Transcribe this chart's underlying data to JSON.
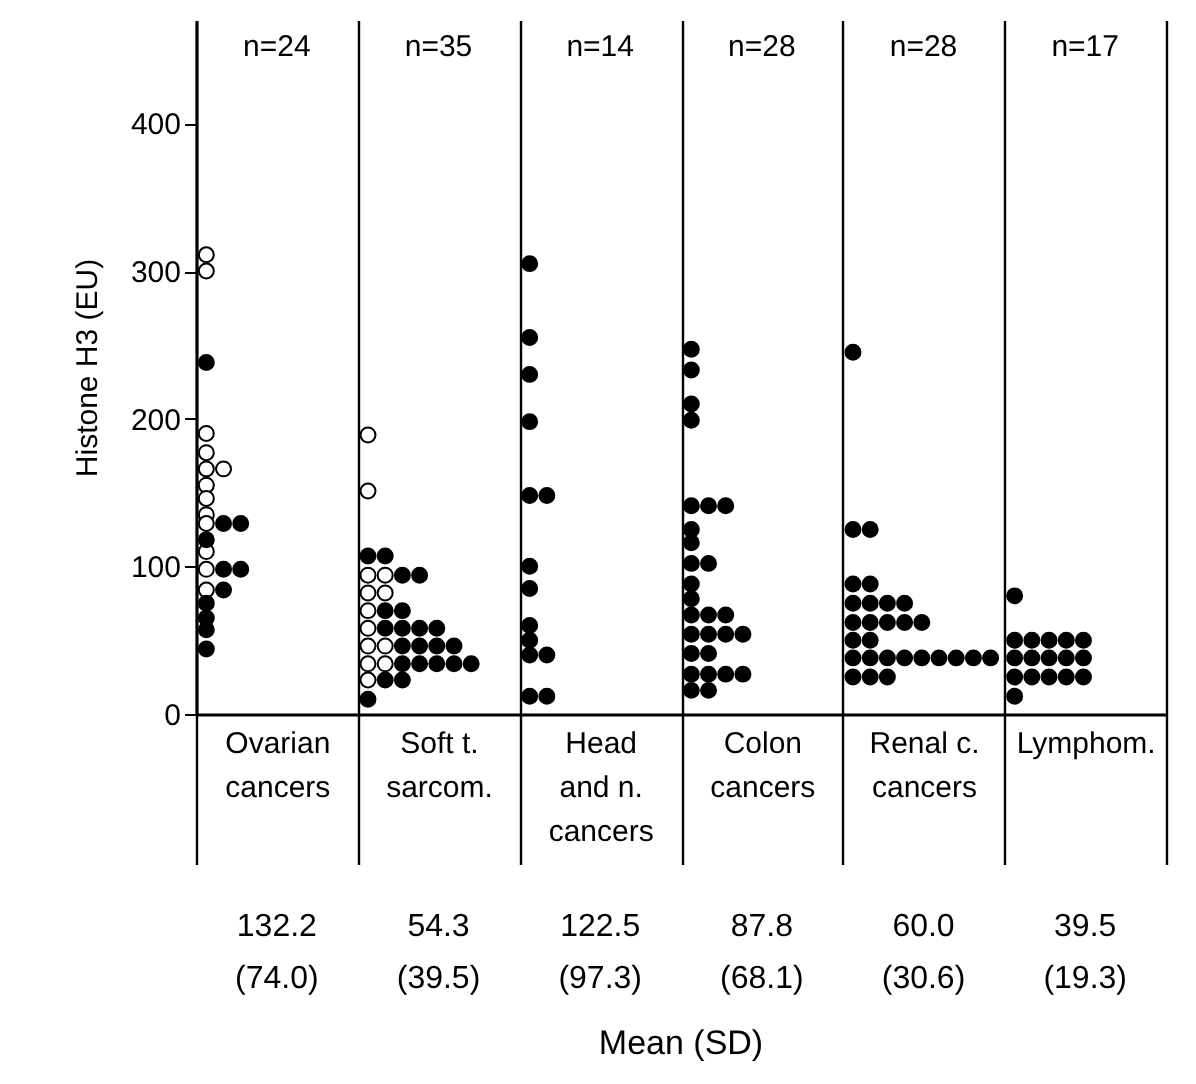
{
  "chart_data": {
    "type": "scatter",
    "ylabel": "Histone H3 (EU)",
    "categories": [
      "Ovarian\ncancers",
      "Soft t.\nsarcom.",
      "Head\nand n.\ncancers",
      "Colon\ncancers",
      "Renal c.\ncancers",
      "Lymphom."
    ],
    "ylim": [
      0,
      470
    ],
    "yticks": [
      0,
      100,
      200,
      300,
      400
    ],
    "grid": "x",
    "marker": "circle",
    "series": [
      {
        "color": "#ffffff",
        "x": [
          "Ovarian\ncancers",
          "Ovarian\ncancers",
          "Ovarian\ncancers",
          "Ovarian\ncancers",
          "Ovarian\ncancers",
          "Ovarian\ncancers",
          "Ovarian\ncancers",
          "Ovarian\ncancers",
          "Ovarian\ncancers",
          "Ovarian\ncancers",
          "Ovarian\ncancers",
          "Ovarian\ncancers",
          "Ovarian\ncancers",
          "Soft t.\nsarcom.",
          "Soft t.\nsarcom.",
          "Soft t.\nsarcom.",
          "Soft t.\nsarcom.",
          "Soft t.\nsarcom.",
          "Soft t.\nsarcom.",
          "Soft t.\nsarcom.",
          "Soft t.\nsarcom.",
          "Soft t.\nsarcom.",
          "Soft t.\nsarcom.",
          "Soft t.\nsarcom.",
          "Soft t.\nsarcom.",
          "Soft t.\nsarcom."
        ],
        "values": [
          311,
          300,
          190,
          177,
          166,
          166,
          155,
          146,
          135,
          129,
          110,
          98,
          84,
          189,
          151,
          94,
          94,
          82,
          82,
          70,
          58,
          46,
          46,
          34,
          34,
          23
        ]
      },
      {
        "color": "#000000",
        "x": [
          "Ovarian\ncancers",
          "Ovarian\ncancers",
          "Ovarian\ncancers",
          "Ovarian\ncancers",
          "Ovarian\ncancers",
          "Ovarian\ncancers",
          "Ovarian\ncancers",
          "Ovarian\ncancers",
          "Ovarian\ncancers",
          "Ovarian\ncancers",
          "Ovarian\ncancers",
          "Soft t.\nsarcom.",
          "Soft t.\nsarcom.",
          "Soft t.\nsarcom.",
          "Soft t.\nsarcom.",
          "Soft t.\nsarcom.",
          "Soft t.\nsarcom.",
          "Soft t.\nsarcom.",
          "Soft t.\nsarcom.",
          "Soft t.\nsarcom.",
          "Soft t.\nsarcom.",
          "Soft t.\nsarcom.",
          "Soft t.\nsarcom.",
          "Soft t.\nsarcom.",
          "Soft t.\nsarcom.",
          "Soft t.\nsarcom.",
          "Soft t.\nsarcom.",
          "Soft t.\nsarcom.",
          "Soft t.\nsarcom.",
          "Soft t.\nsarcom.",
          "Soft t.\nsarcom.",
          "Soft t.\nsarcom.",
          "Soft t.\nsarcom.",
          "Head\nand n.\ncancers",
          "Head\nand n.\ncancers",
          "Head\nand n.\ncancers",
          "Head\nand n.\ncancers",
          "Head\nand n.\ncancers",
          "Head\nand n.\ncancers",
          "Head\nand n.\ncancers",
          "Head\nand n.\ncancers",
          "Head\nand n.\ncancers",
          "Head\nand n.\ncancers",
          "Head\nand n.\ncancers",
          "Head\nand n.\ncancers",
          "Head\nand n.\ncancers",
          "Head\nand n.\ncancers",
          "Colon\ncancers",
          "Colon\ncancers",
          "Colon\ncancers",
          "Colon\ncancers",
          "Colon\ncancers",
          "Colon\ncancers",
          "Colon\ncancers",
          "Colon\ncancers",
          "Colon\ncancers",
          "Colon\ncancers",
          "Colon\ncancers",
          "Colon\ncancers",
          "Colon\ncancers",
          "Colon\ncancers",
          "Colon\ncancers",
          "Colon\ncancers",
          "Colon\ncancers",
          "Colon\ncancers",
          "Colon\ncancers",
          "Colon\ncancers",
          "Colon\ncancers",
          "Colon\ncancers",
          "Colon\ncancers",
          "Colon\ncancers",
          "Colon\ncancers",
          "Colon\ncancers",
          "Colon\ncancers",
          "Colon\ncancers",
          "Renal c.\ncancers",
          "Renal c.\ncancers",
          "Renal c.\ncancers",
          "Renal c.\ncancers",
          "Renal c.\ncancers",
          "Renal c.\ncancers",
          "Renal c.\ncancers",
          "Renal c.\ncancers",
          "Renal c.\ncancers",
          "Renal c.\ncancers",
          "Renal c.\ncancers",
          "Renal c.\ncancers",
          "Renal c.\ncancers",
          "Renal c.\ncancers",
          "Renal c.\ncancers",
          "Renal c.\ncancers",
          "Renal c.\ncancers",
          "Renal c.\ncancers",
          "Renal c.\ncancers",
          "Renal c.\ncancers",
          "Renal c.\ncancers",
          "Renal c.\ncancers",
          "Renal c.\ncancers",
          "Renal c.\ncancers",
          "Renal c.\ncancers",
          "Renal c.\ncancers",
          "Renal c.\ncancers",
          "Renal c.\ncancers",
          "Lymphom.",
          "Lymphom.",
          "Lymphom.",
          "Lymphom.",
          "Lymphom.",
          "Lymphom.",
          "Lymphom.",
          "Lymphom.",
          "Lymphom.",
          "Lymphom.",
          "Lymphom.",
          "Lymphom.",
          "Lymphom.",
          "Lymphom.",
          "Lymphom.",
          "Lymphom.",
          "Lymphom."
        ],
        "values": [
          238,
          129,
          129,
          118,
          98,
          98,
          84,
          75,
          65,
          57,
          44,
          107,
          107,
          94,
          94,
          70,
          70,
          58,
          58,
          58,
          58,
          46,
          46,
          46,
          46,
          34,
          34,
          34,
          34,
          34,
          23,
          23,
          10,
          305,
          255,
          230,
          198,
          148,
          148,
          100,
          85,
          60,
          50,
          40,
          40,
          12,
          12,
          247,
          233,
          210,
          199,
          141,
          141,
          141,
          125,
          116,
          102,
          102,
          88,
          78,
          67,
          67,
          67,
          54,
          54,
          54,
          54,
          41,
          41,
          27,
          27,
          27,
          27,
          16,
          16,
          245,
          125,
          125,
          88,
          88,
          75,
          75,
          75,
          75,
          62,
          62,
          62,
          62,
          62,
          50,
          50,
          38,
          38,
          38,
          38,
          38,
          38,
          38,
          38,
          38,
          25,
          25,
          25,
          80,
          50,
          50,
          50,
          50,
          50,
          38,
          38,
          38,
          38,
          38,
          25,
          25,
          25,
          25,
          25,
          12
        ]
      }
    ],
    "annotations": [
      "n=24",
      "n=35",
      "n=14",
      "n=28",
      "n=28",
      "n=17",
      "132.2\n(74.0)",
      "54.3\n(39.5)",
      "122.5\n(97.3)",
      "87.8\n(68.1)",
      "60.0\n(30.6)",
      "39.5\n(19.3)",
      "Mean (SD)"
    ]
  }
}
